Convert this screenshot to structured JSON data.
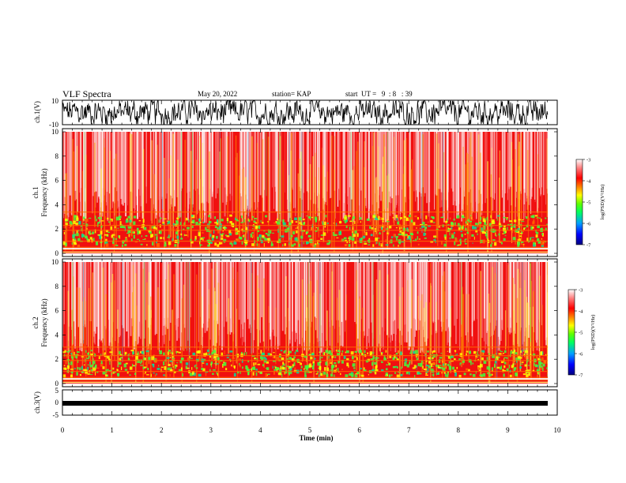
{
  "header": {
    "title": "VLF Spectra",
    "date": "May 20, 2022",
    "station": "station= KAP",
    "start_ut": "start  UT =   9  : 8   : 39"
  },
  "colors": {
    "spectrogram_bg": "#f01010",
    "waveform": "#000000",
    "colormap": [
      "#000080",
      "#0000ff",
      "#00a0ff",
      "#00ff60",
      "#60ff00",
      "#ffff00",
      "#ff8000",
      "#ff0000",
      "#ff8080",
      "#ffffff"
    ]
  },
  "chart_data": [
    {
      "type": "line",
      "ylabel": "ch.1(V)",
      "ylim": [
        -10,
        10
      ],
      "yticks": [
        "10",
        "-10"
      ],
      "description_series": "black waveform fluctuating between about -6 and 8 V"
    },
    {
      "type": "heatmap",
      "ylabel": "ch.1\nFrequency (kHz)",
      "ylabel_lines": [
        "ch.1",
        "Frequency  (kHz)"
      ],
      "ylim": [
        0,
        10
      ],
      "yticks": [
        "0",
        "2",
        "4",
        "6",
        "8",
        "10"
      ],
      "colorbar": {
        "label": "log(PSD)(V²/Hz)",
        "range": [
          -7,
          -3
        ],
        "ticks": [
          "-3",
          "-4",
          "-5",
          "-6",
          "-7"
        ]
      }
    },
    {
      "type": "heatmap",
      "ylabel_lines": [
        "ch.2",
        "Frequency  (kHz)"
      ],
      "ylim": [
        0,
        10
      ],
      "yticks": [
        "0",
        "2",
        "4",
        "6",
        "8",
        "10"
      ],
      "colorbar": {
        "label": "log(PSD)(V²/Hz)",
        "range": [
          -7,
          -3
        ],
        "ticks": [
          "-3",
          "-4",
          "-5",
          "-6",
          "-7"
        ]
      }
    },
    {
      "type": "line",
      "ylabel": "ch.3(V)",
      "ylim": [
        -5,
        5
      ],
      "yticks": [
        "5",
        "0",
        "-5"
      ],
      "xlabel": "Time  (min)",
      "xlim": [
        0,
        10
      ],
      "xticks": [
        "0",
        "1",
        "2",
        "3",
        "4",
        "5",
        "6",
        "7",
        "8",
        "9",
        "10"
      ]
    }
  ]
}
